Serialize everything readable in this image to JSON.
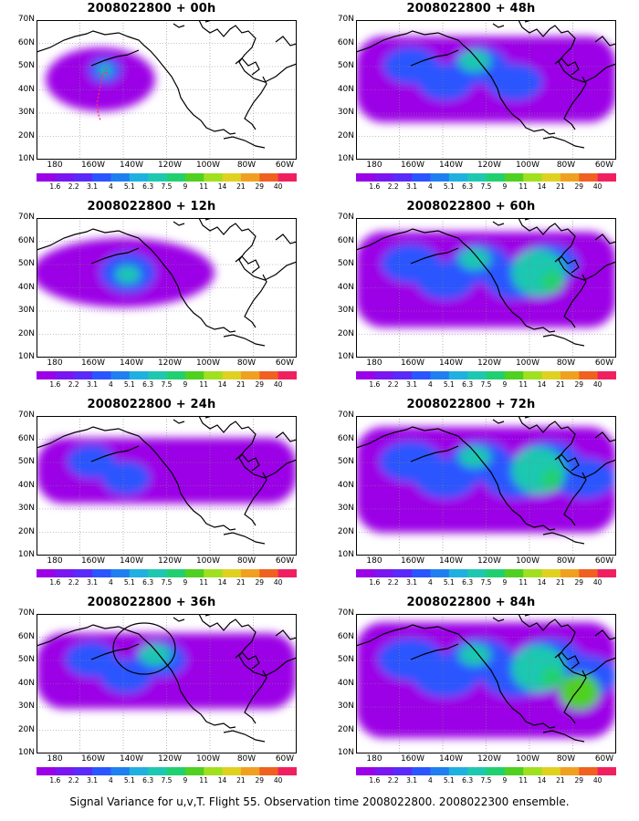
{
  "panels": [
    {
      "title": "2008022800 + 00h",
      "level": 0
    },
    {
      "title": "2008022800 + 12h",
      "level": 1
    },
    {
      "title": "2008022800 + 24h",
      "level": 2
    },
    {
      "title": "2008022800 + 36h",
      "level": 3
    },
    {
      "title": "2008022800 + 48h",
      "level": 4
    },
    {
      "title": "2008022800 + 60h",
      "level": 5
    },
    {
      "title": "2008022800 + 72h",
      "level": 6
    },
    {
      "title": "2008022800 + 84h",
      "level": 7
    }
  ],
  "lat_labels": [
    "70N",
    "60N",
    "50N",
    "40N",
    "30N",
    "20N",
    "10N"
  ],
  "lon_labels": [
    "180",
    "160W",
    "140W",
    "120W",
    "100W",
    "80W",
    "60W"
  ],
  "colorbar": {
    "labels": [
      "1.6",
      "2.2",
      "3.1",
      "4",
      "5.1",
      "6.3",
      "7.5",
      "9",
      "11",
      "14",
      "21",
      "29",
      "40"
    ],
    "colors": [
      "#9b00e6",
      "#7a16f0",
      "#5a2af8",
      "#2b55ff",
      "#1f7ff0",
      "#1fb0e0",
      "#1ec8b0",
      "#20d070",
      "#50d020",
      "#a0e020",
      "#e0d020",
      "#f0a020",
      "#f06020",
      "#f02060"
    ]
  },
  "caption": "Signal Variance for u,v,T. Flight 55. Observation time 2008022800. 2008022300 ensemble."
}
